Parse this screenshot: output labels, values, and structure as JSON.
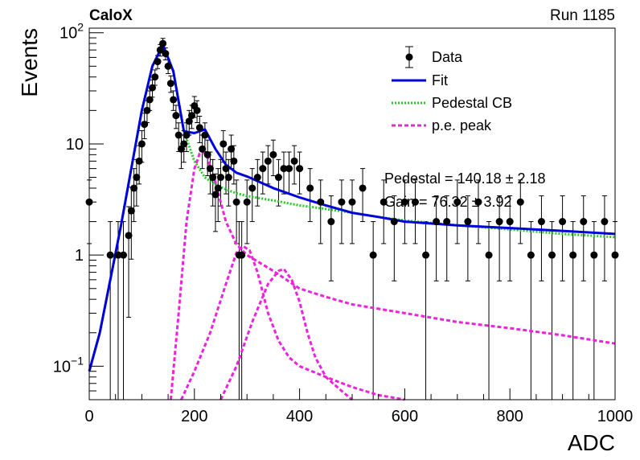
{
  "header": {
    "experiment": "CaloX",
    "run": "Run 1185"
  },
  "chart_data": {
    "type": "scatter",
    "xlabel": "ADC",
    "ylabel": "Events",
    "xlim": [
      0,
      1000
    ],
    "ylim": [
      0.05,
      110
    ],
    "yscale": "log",
    "x_ticks": [
      "0",
      "200",
      "400",
      "600",
      "800",
      "1000"
    ],
    "y_ticks": [
      {
        "value": 0.1,
        "label": "10",
        "exp": "−1"
      },
      {
        "value": 1,
        "label": "1",
        "exp": ""
      },
      {
        "value": 10,
        "label": "10",
        "exp": ""
      },
      {
        "value": 100,
        "label": "10",
        "exp": "2"
      }
    ],
    "legend_position": "top-right",
    "legend": [
      {
        "label": "Data",
        "color": "#000000",
        "style": "marker"
      },
      {
        "label": "Fit",
        "color": "#0000dd",
        "style": "solid"
      },
      {
        "label": "Pedestal CB",
        "color": "#22cc22",
        "style": "dotted"
      },
      {
        "label": "p.e. peak",
        "color": "#ee22dd",
        "style": "dashed"
      }
    ],
    "annotations": [
      "Pedestal = 140.18 ± 2.18",
      "Gain = 76.32 ± 3.92"
    ],
    "series": [
      {
        "name": "Data",
        "x": [
          0,
          40,
          55,
          65,
          75,
          80,
          85,
          90,
          95,
          100,
          105,
          110,
          115,
          120,
          125,
          130,
          135,
          140,
          145,
          150,
          155,
          160,
          165,
          170,
          175,
          180,
          185,
          190,
          195,
          200,
          205,
          210,
          215,
          220,
          225,
          230,
          235,
          240,
          245,
          250,
          255,
          260,
          265,
          270,
          275,
          280,
          285,
          290,
          300,
          310,
          320,
          330,
          340,
          350,
          360,
          370,
          380,
          390,
          400,
          420,
          440,
          460,
          480,
          500,
          520,
          540,
          560,
          580,
          600,
          620,
          640,
          660,
          680,
          700,
          720,
          740,
          760,
          780,
          800,
          820,
          840,
          860,
          880,
          900,
          920,
          940,
          960,
          980,
          1000
        ],
        "y": [
          3,
          1,
          1,
          1,
          1.5,
          2.5,
          4,
          5,
          7,
          10,
          15,
          20,
          25,
          32,
          40,
          55,
          70,
          80,
          65,
          50,
          35,
          25,
          18,
          12,
          9,
          10,
          12,
          16,
          18,
          22,
          20,
          14,
          9,
          12,
          8,
          6,
          5,
          3.5,
          4,
          5,
          10,
          6,
          5,
          9,
          7,
          3,
          1,
          1,
          3,
          4,
          5,
          6,
          7,
          8,
          5,
          6,
          6,
          7,
          6,
          4,
          3,
          2,
          3,
          3,
          4,
          1,
          3,
          2,
          3,
          3,
          1,
          2,
          2,
          3,
          2,
          3,
          1,
          2,
          2,
          3,
          1,
          2,
          1,
          2,
          1,
          2,
          1,
          2,
          1
        ]
      },
      {
        "name": "Fit",
        "x": [
          0,
          20,
          40,
          60,
          80,
          100,
          120,
          140,
          160,
          180,
          200,
          220,
          240,
          260,
          280,
          300,
          350,
          400,
          450,
          500,
          550,
          600,
          700,
          800,
          900,
          1000
        ],
        "y": [
          0.09,
          0.2,
          0.6,
          1.8,
          6,
          20,
          50,
          78,
          45,
          13,
          12.5,
          13.5,
          9,
          6.5,
          5.5,
          5.1,
          4,
          3.3,
          2.8,
          2.4,
          2.2,
          2,
          1.85,
          1.75,
          1.65,
          1.55
        ]
      },
      {
        "name": "Pedestal CB",
        "x": [
          0,
          20,
          40,
          60,
          80,
          100,
          120,
          140,
          160,
          180,
          200,
          220,
          240,
          260,
          280,
          300,
          350,
          400,
          450,
          500,
          550,
          600,
          700,
          800,
          900,
          1000
        ],
        "y": [
          0.09,
          0.2,
          0.6,
          1.8,
          6,
          20,
          50,
          78,
          45,
          13,
          7,
          5,
          4.3,
          3.9,
          3.6,
          3.4,
          3.1,
          2.8,
          2.6,
          2.4,
          2.2,
          2.05,
          1.85,
          1.7,
          1.55,
          1.45
        ]
      },
      {
        "name": "p.e. peak",
        "x": [
          155,
          170,
          185,
          200,
          210,
          217,
          225,
          240,
          260,
          280,
          300,
          350,
          400,
          450,
          500,
          600,
          700,
          800,
          900,
          1000
        ],
        "y": [
          0.05,
          0.3,
          2,
          6,
          8.2,
          8.5,
          7.5,
          4.5,
          2,
          1.25,
          1,
          0.72,
          0.5,
          0.42,
          0.36,
          0.3,
          0.25,
          0.22,
          0.19,
          0.16
        ]
      },
      {
        "name": "p.e. peak",
        "x": [
          175,
          200,
          230,
          260,
          280,
          293,
          305,
          320,
          340,
          360,
          380,
          400,
          450,
          500,
          550,
          600
        ],
        "y": [
          0.05,
          0.09,
          0.2,
          0.55,
          1.05,
          1.2,
          1.1,
          0.7,
          0.3,
          0.17,
          0.12,
          0.1,
          0.08,
          0.065,
          0.055,
          0.05
        ]
      },
      {
        "name": "p.e. peak",
        "x": [
          250,
          280,
          310,
          340,
          360,
          370,
          385,
          400,
          415,
          430,
          450,
          480,
          500
        ],
        "y": [
          0.05,
          0.1,
          0.25,
          0.55,
          0.72,
          0.75,
          0.6,
          0.38,
          0.2,
          0.12,
          0.08,
          0.06,
          0.05
        ]
      }
    ]
  }
}
